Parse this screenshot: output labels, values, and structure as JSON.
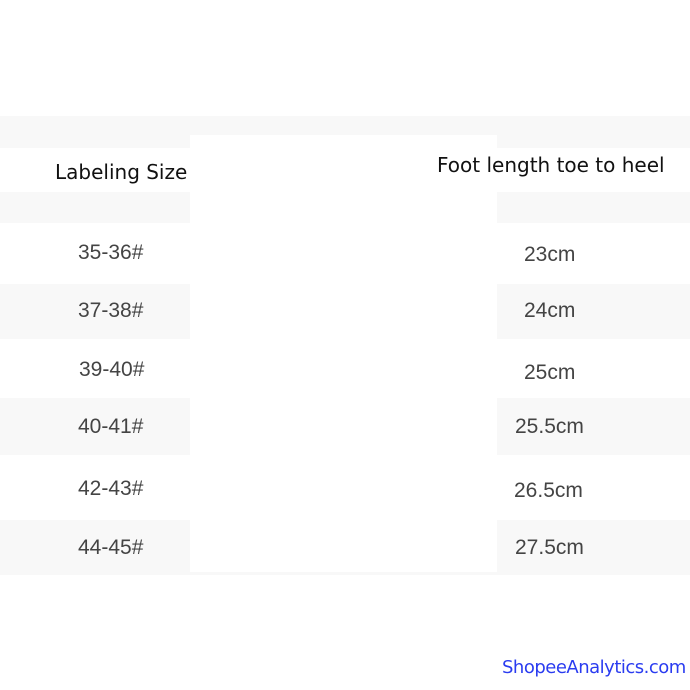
{
  "table": {
    "headers": [
      "Labeling Size",
      "Foot length toe to heel"
    ],
    "rows": [
      {
        "size": "35-36#",
        "foot_length": "23cm"
      },
      {
        "size": "37-38#",
        "foot_length": "24cm"
      },
      {
        "size": "39-40#",
        "foot_length": "25cm"
      },
      {
        "size": "40-41#",
        "foot_length": "25.5cm"
      },
      {
        "size": "42-43#",
        "foot_length": "26.5cm"
      },
      {
        "size": "44-45#",
        "foot_length": "27.5cm"
      }
    ],
    "stripe_color": "#f8f8f8"
  },
  "watermark": {
    "text": "ShopeeAnalytics.com",
    "color": "#2a3cf0"
  }
}
